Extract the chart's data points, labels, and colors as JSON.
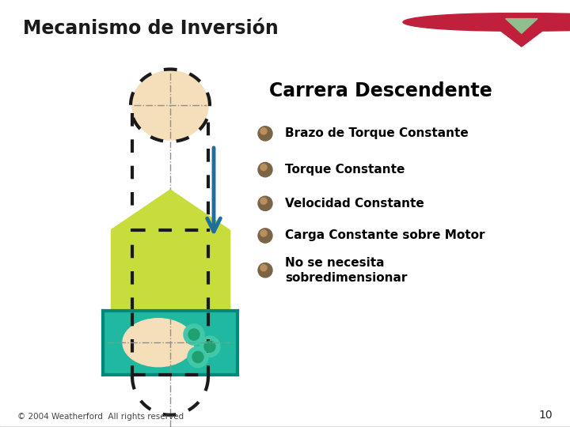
{
  "title": "Mecanismo de Inversión",
  "header_bg": "#8fbe8f",
  "header_text_color": "#1a1a1a",
  "body_bg": "#ffffff",
  "footer_text": "© 2004 Weatherford  All rights reserved",
  "footer_page": "10",
  "section_title": "Carrera Descendente",
  "bullet_points": [
    "Brazo de Torque Constante",
    "Torque Constante",
    "Velocidad Constante",
    "Carga Constante sobre Motor",
    "No se necesita\nsobredimensionar"
  ],
  "bullet_color": "#8b7355",
  "bullet_highlight": "#c8a870",
  "text_color": "#000000",
  "arrow_color": "#1e6fa0",
  "circle_fill": "#f5deba",
  "rect_green_color": "#c8dc3c",
  "rect_teal_color": "#20b8a0",
  "teal_border_color": "#008878",
  "dot_color": "#1a1a1a",
  "logo_color": "#c0203c",
  "centerline_color": "#909090",
  "green_inner_color": "#d8e840"
}
